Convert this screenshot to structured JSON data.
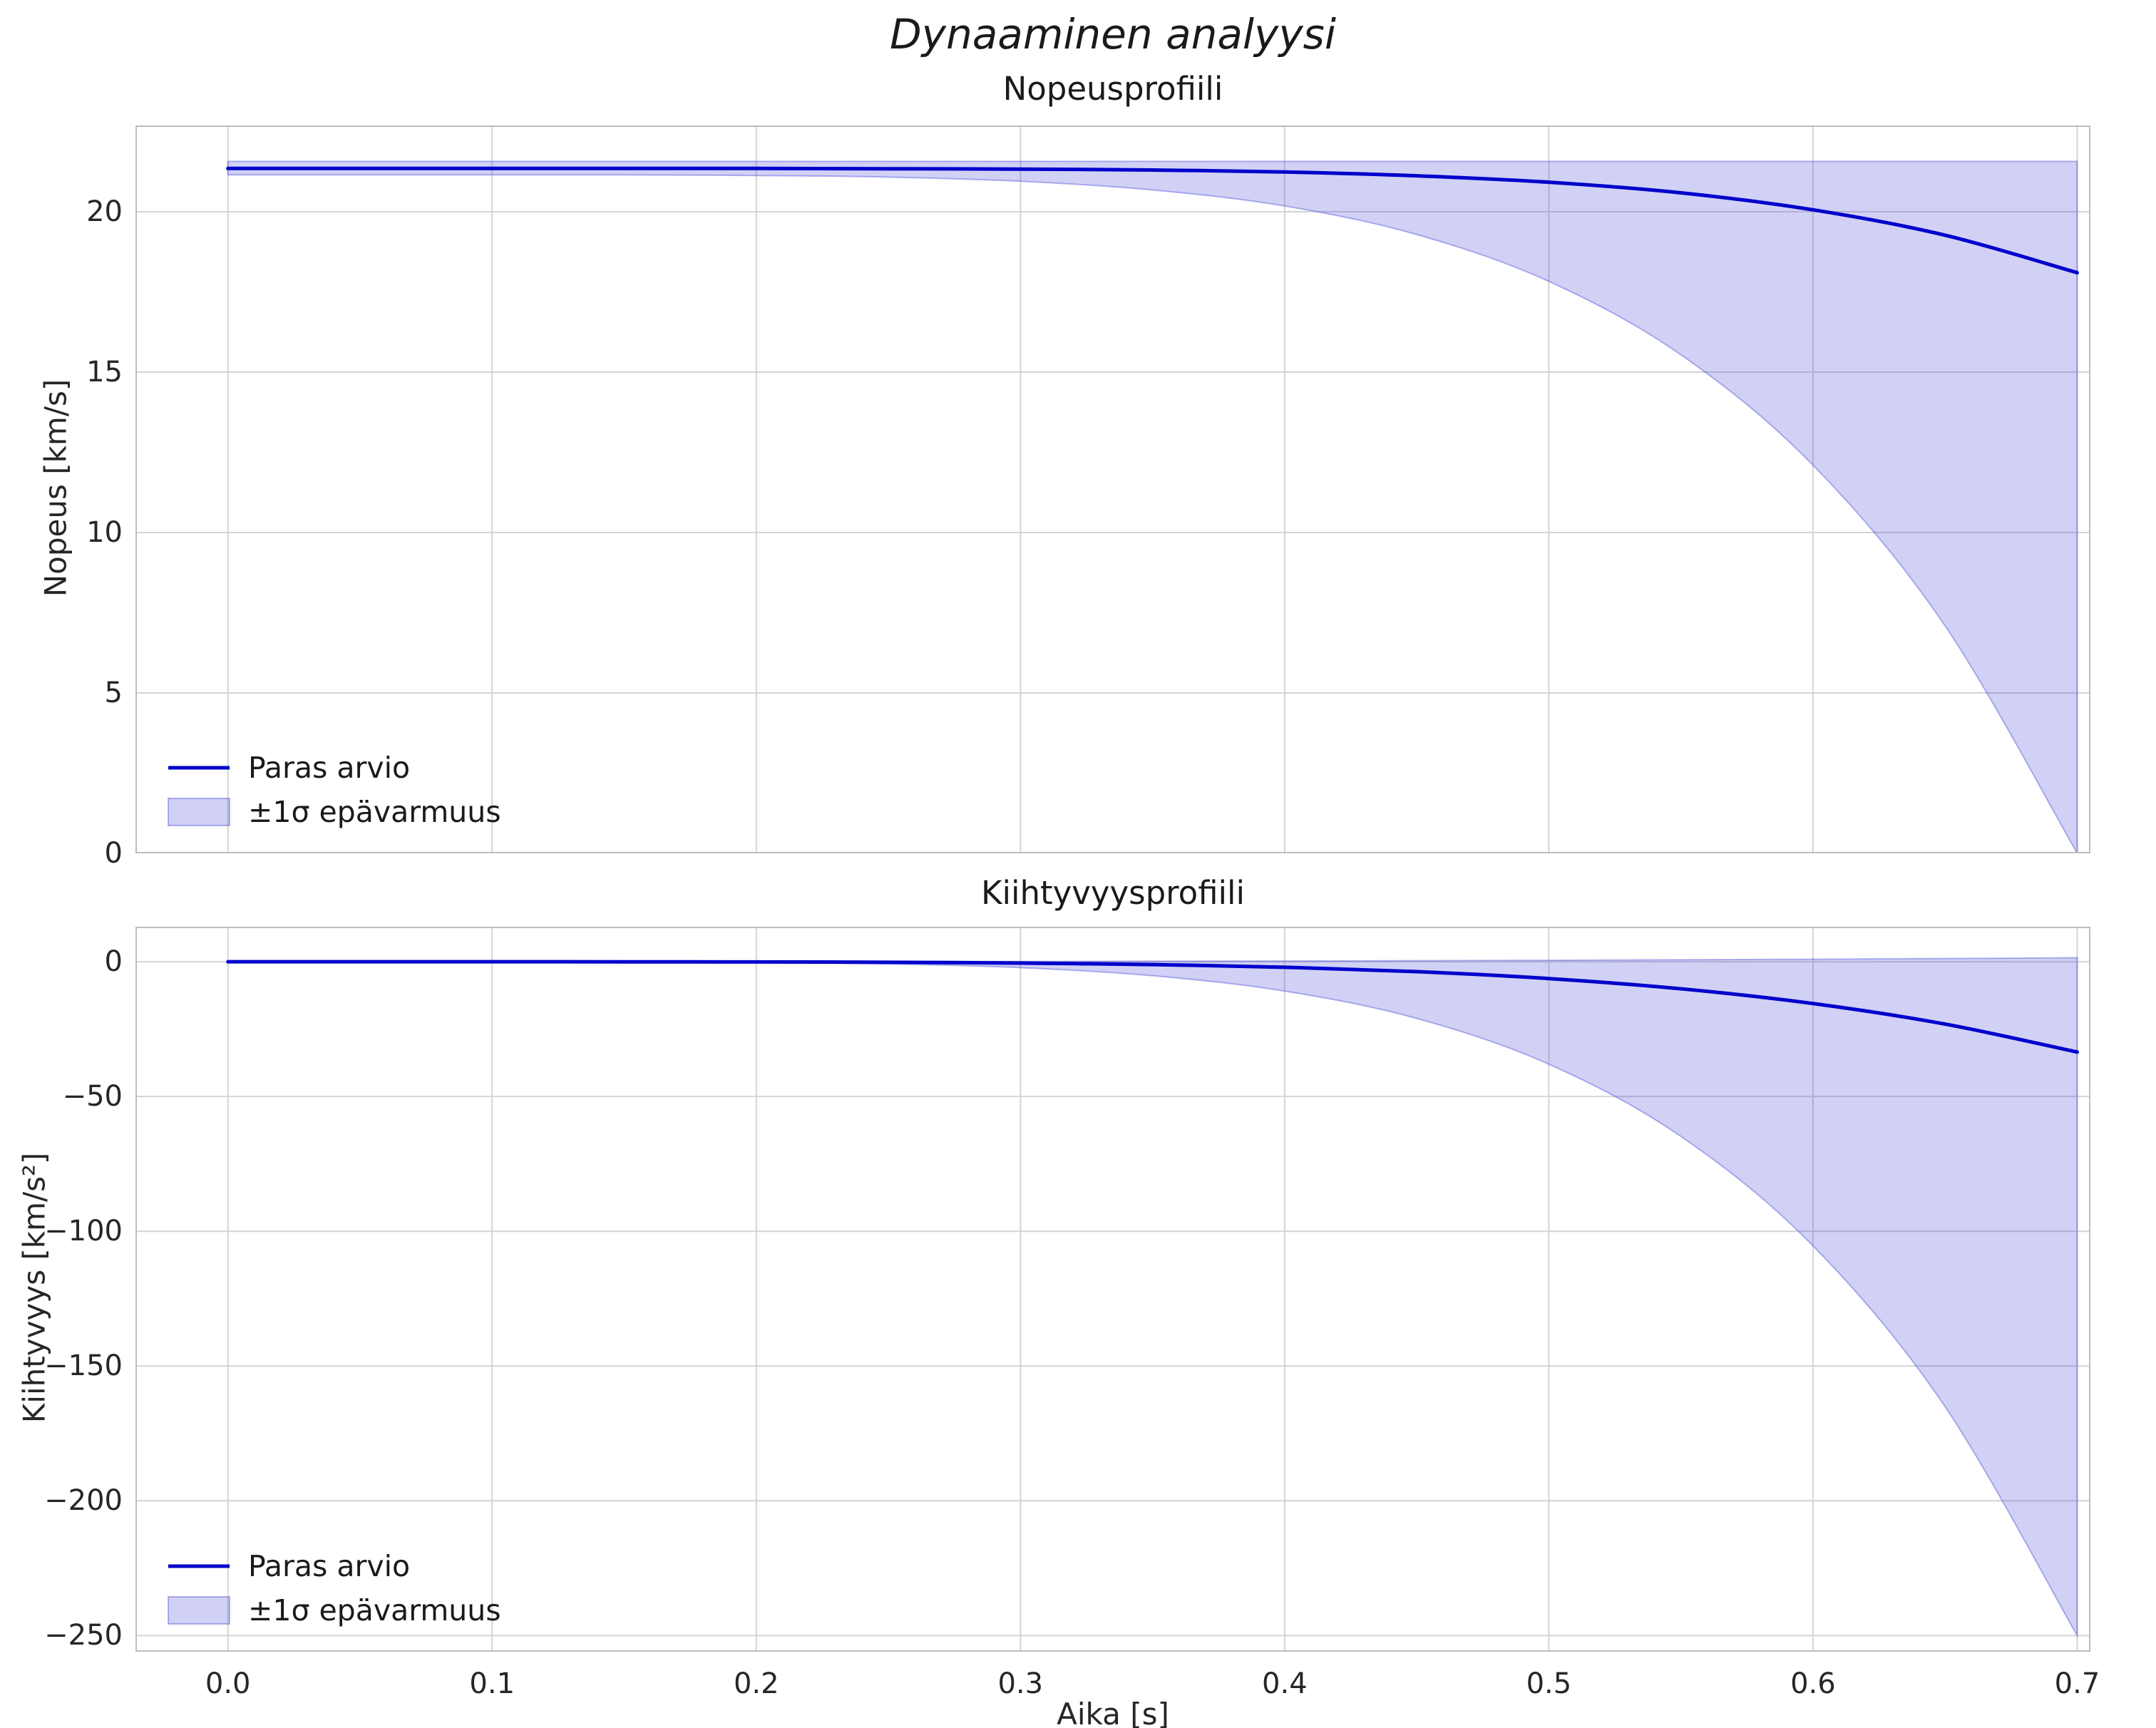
{
  "title": "Dynaaminen analyysi",
  "colors": {
    "line": "#0000cc",
    "band_fill": "rgba(62,62,215,0.24)",
    "band_edge": "rgba(62,62,215,0.38)",
    "grid": "#d4d4d4",
    "spine": "#bdbdbd",
    "text": "#262626",
    "background": "#ffffff"
  },
  "chart_data": [
    {
      "type": "line",
      "title": "Nopeusprofiili",
      "ylabel": "Nopeus [km/s]",
      "xlabel": "",
      "xlim": [
        -0.035,
        0.705
      ],
      "ylim": [
        0,
        22.69
      ],
      "xticks": [
        0,
        0.1,
        0.2,
        0.3,
        0.4,
        0.5,
        0.6,
        0.7
      ],
      "xtick_labels": [
        "0.0",
        "0.1",
        "0.2",
        "0.3",
        "0.4",
        "0.5",
        "0.6",
        "0.7"
      ],
      "show_x_tick_labels": false,
      "yticks": [
        0,
        5,
        10,
        15,
        20
      ],
      "ytick_labels": [
        "0",
        "5",
        "10",
        "15",
        "20"
      ],
      "grid": true,
      "legend_position": "lower left",
      "x": [
        0,
        0.05,
        0.1,
        0.15,
        0.2,
        0.25,
        0.3,
        0.35,
        0.4,
        0.45,
        0.5,
        0.55,
        0.6,
        0.65,
        0.7
      ],
      "series": [
        {
          "name": "Paras arvio",
          "type": "line",
          "values": [
            21.35,
            21.35,
            21.35,
            21.35,
            21.35,
            21.34,
            21.33,
            21.3,
            21.24,
            21.12,
            20.92,
            20.59,
            20.06,
            19.27,
            18.1
          ]
        },
        {
          "name": "±1σ epävarmuus",
          "type": "band",
          "upper": [
            21.57,
            21.57,
            21.57,
            21.57,
            21.57,
            21.57,
            21.57,
            21.57,
            21.57,
            21.57,
            21.57,
            21.57,
            21.57,
            21.57,
            21.57
          ],
          "lower": [
            21.15,
            21.15,
            21.15,
            21.15,
            21.13,
            21.08,
            20.95,
            20.68,
            20.18,
            19.29,
            17.83,
            15.54,
            12.1,
            7.09,
            0.0
          ]
        }
      ]
    },
    {
      "type": "line",
      "title": "Kiihtyvyysprofiili",
      "ylabel": "Kiihtyvyys [km/s²]",
      "xlabel": "Aika [s]",
      "xlim": [
        -0.035,
        0.705
      ],
      "ylim": [
        -256,
        13
      ],
      "xticks": [
        0,
        0.1,
        0.2,
        0.3,
        0.4,
        0.5,
        0.6,
        0.7
      ],
      "xtick_labels": [
        "0.0",
        "0.1",
        "0.2",
        "0.3",
        "0.4",
        "0.5",
        "0.6",
        "0.7"
      ],
      "show_x_tick_labels": true,
      "yticks": [
        0,
        -50,
        -100,
        -150,
        -200,
        -250
      ],
      "ytick_labels": [
        "0",
        "−50",
        "−100",
        "−150",
        "−200",
        "−250"
      ],
      "grid": true,
      "legend_position": "lower left",
      "x": [
        0,
        0.05,
        0.1,
        0.15,
        0.2,
        0.25,
        0.3,
        0.35,
        0.4,
        0.45,
        0.5,
        0.55,
        0.6,
        0.65,
        0.7
      ],
      "series": [
        {
          "name": "Paras arvio",
          "type": "line",
          "values": [
            0,
            -0.001,
            -0.002,
            -0.02,
            -0.06,
            -0.19,
            -0.49,
            -1.05,
            -2.04,
            -3.68,
            -6.23,
            -10.03,
            -15.5,
            -23.13,
            -33.5
          ]
        },
        {
          "name": "±1σ epävarmuus",
          "type": "band",
          "upper": [
            0,
            0.001,
            0.004,
            0.01,
            0.03,
            0.07,
            0.12,
            0.19,
            0.28,
            0.4,
            0.55,
            0.73,
            0.94,
            1.2,
            1.5
          ],
          "lower": [
            0,
            -0.002,
            -0.005,
            -0.04,
            -0.22,
            -0.78,
            -2.18,
            -5.16,
            -10.88,
            -21.02,
            -38.0,
            -64.8,
            -105.4,
            -165.1,
            -250.0
          ]
        }
      ]
    }
  ]
}
